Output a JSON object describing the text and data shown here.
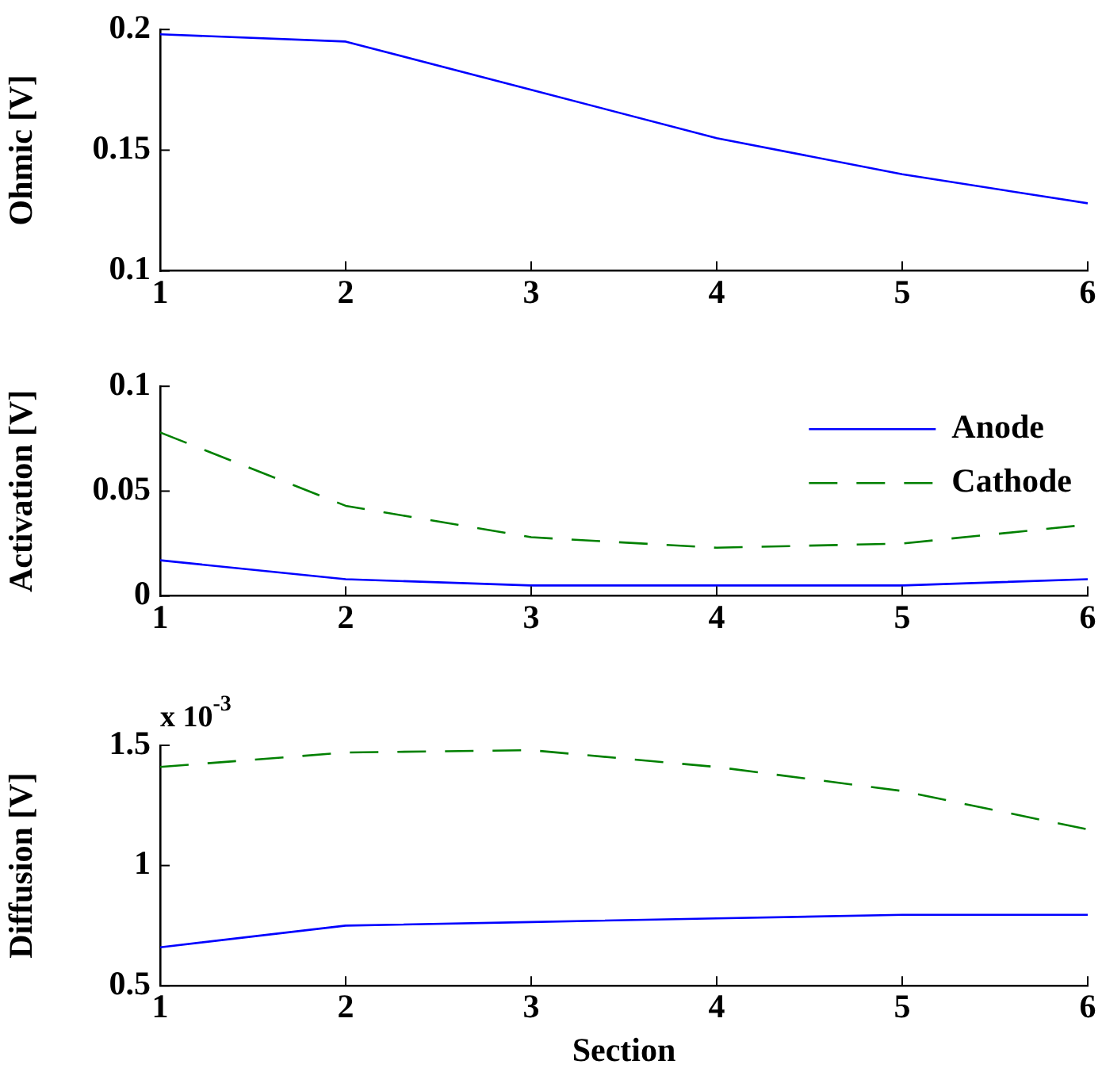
{
  "chart_data": [
    {
      "type": "line",
      "x": [
        1,
        2,
        3,
        4,
        5,
        6
      ],
      "xlim": [
        1,
        6
      ],
      "xticks": [
        1,
        2,
        3,
        4,
        5,
        6
      ],
      "ylabel": "Ohmic [V]",
      "ylim": [
        0.1,
        0.2
      ],
      "yticks": [
        0.1,
        0.15,
        0.2
      ],
      "grid": false,
      "legend": false,
      "series": [
        {
          "color": "#0000ff",
          "line_style": "solid",
          "values": [
            0.198,
            0.195,
            0.175,
            0.155,
            0.14,
            0.128
          ]
        }
      ]
    },
    {
      "type": "line",
      "x": [
        1,
        2,
        3,
        4,
        5,
        6
      ],
      "xlim": [
        1,
        6
      ],
      "xticks": [
        1,
        2,
        3,
        4,
        5,
        6
      ],
      "ylabel": "Activation [V]",
      "ylim": [
        0,
        0.1
      ],
      "yticks": [
        0,
        0.05,
        0.1
      ],
      "grid": false,
      "legend": "top right",
      "series": [
        {
          "name": "Anode",
          "color": "#0000ff",
          "line_style": "solid",
          "values": [
            0.017,
            0.008,
            0.005,
            0.005,
            0.005,
            0.008
          ]
        },
        {
          "name": "Cathode",
          "color": "#008000",
          "line_style": "dashed",
          "values": [
            0.078,
            0.043,
            0.028,
            0.023,
            0.025,
            0.034
          ]
        }
      ]
    },
    {
      "type": "line",
      "x": [
        1,
        2,
        3,
        4,
        5,
        6
      ],
      "xlim": [
        1,
        6
      ],
      "xticks": [
        1,
        2,
        3,
        4,
        5,
        6
      ],
      "xlabel": "Section",
      "ylabel": "Diffusion [V]",
      "ylim": [
        0.5,
        1.5
      ],
      "yticks": [
        0.5,
        1,
        1.5
      ],
      "grid": false,
      "legend": false,
      "annotations": [
        "x 10$^{-3}$"
      ],
      "series": [
        {
          "name": null,
          "color": "#0000ff",
          "line_style": "solid",
          "values": [
            0.66,
            0.75,
            0.765,
            0.78,
            0.795,
            0.795
          ]
        },
        {
          "name": null,
          "color": "#008000",
          "line_style": "dashed",
          "values": [
            1.41,
            1.47,
            1.48,
            1.41,
            1.31,
            1.15
          ]
        }
      ]
    }
  ]
}
